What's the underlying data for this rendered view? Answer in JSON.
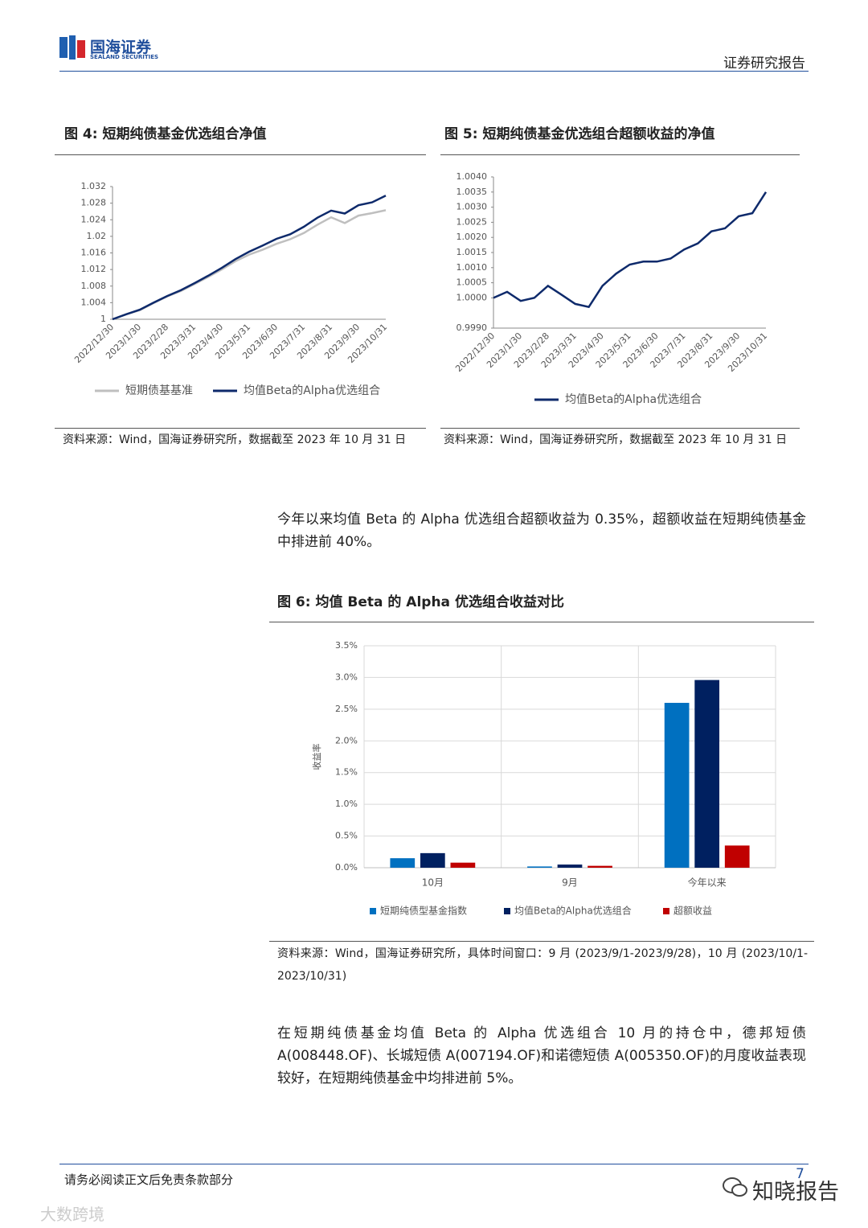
{
  "header": {
    "logo_cn": "国海证券",
    "logo_en": "SEALAND SECURITIES",
    "report_type": "证券研究报告"
  },
  "chart_data": [
    {
      "type": "line",
      "title": "图 4:  短期纯债基金优选组合净值",
      "categories": [
        "2022/12/30",
        null,
        "2023/1/30",
        null,
        "2023/2/28",
        null,
        "2023/3/31",
        null,
        "2023/4/30",
        null,
        "2023/5/31",
        null,
        "2023/6/30",
        null,
        "2023/7/31",
        null,
        "2023/8/31",
        null,
        "2023/9/30",
        null,
        "2023/10/31"
      ],
      "series": [
        {
          "name": "短期债基基准",
          "color": "#bfbfbf",
          "values": [
            1.0,
            1.0012,
            1.0022,
            1.0039,
            1.0055,
            1.0068,
            1.0085,
            1.0102,
            1.012,
            1.014,
            1.0156,
            1.0168,
            1.0182,
            1.0193,
            1.0208,
            1.0228,
            1.0246,
            1.0232,
            1.025,
            1.0256,
            1.0263
          ]
        },
        {
          "name": "均值Beta的Alpha优选组合",
          "color": "#0e2a6b",
          "values": [
            1.0,
            1.0012,
            1.0023,
            1.004,
            1.0056,
            1.007,
            1.0087,
            1.0105,
            1.0124,
            1.0145,
            1.0163,
            1.0178,
            1.0194,
            1.0205,
            1.0223,
            1.0245,
            1.0262,
            1.0255,
            1.0275,
            1.0282,
            1.0298
          ]
        }
      ],
      "ylim": [
        1,
        1.032
      ],
      "yticks": [
        1,
        1.004,
        1.008,
        1.012,
        1.016,
        1.02,
        1.024,
        1.028,
        1.032
      ],
      "grid": false
    },
    {
      "type": "line",
      "title": "图 5:  短期纯债基金优选组合超额收益的净值",
      "categories": [
        "2022/12/30",
        null,
        "2023/1/30",
        null,
        "2023/2/28",
        null,
        "2023/3/31",
        null,
        "2023/4/30",
        null,
        "2023/5/31",
        null,
        "2023/6/30",
        null,
        "2023/7/31",
        null,
        "2023/8/31",
        null,
        "2023/9/30",
        null,
        "2023/10/31"
      ],
      "series": [
        {
          "name": "均值Beta的Alpha优选组合",
          "color": "#0e2a6b",
          "values": [
            1.0,
            1.0002,
            0.9999,
            1.0,
            1.0004,
            1.0001,
            0.9998,
            0.9997,
            1.0004,
            1.0008,
            1.0011,
            1.0012,
            1.0012,
            1.0013,
            1.0016,
            1.0018,
            1.0022,
            1.0023,
            1.0027,
            1.0028,
            1.0035
          ]
        }
      ],
      "ylim": [
        0.999,
        1.004
      ],
      "yticks": [
        {
          "value": 0.999,
          "label": "0.9990"
        },
        {
          "value": 1,
          "label": "1.0000"
        },
        {
          "value": 1.0005,
          "label": "1.0005"
        },
        {
          "value": 1.001,
          "label": "1.0010"
        },
        {
          "value": 1.0015,
          "label": "1.0015"
        },
        {
          "value": 1.002,
          "label": "1.0020"
        },
        {
          "value": 1.0025,
          "label": "1.0025"
        },
        {
          "value": 1.003,
          "label": "1.0030"
        },
        {
          "value": 1.0035,
          "label": "1.0035"
        },
        {
          "value": 1.004,
          "label": "1.0040"
        }
      ],
      "grid": false
    },
    {
      "type": "bar",
      "title": "图 6:  均值 Beta 的 Alpha 优选组合收益对比",
      "y_label": "收益率",
      "categories": [
        "10月",
        "9月",
        "今年以来"
      ],
      "series": [
        {
          "name": "短期纯债型基金指数",
          "color": "#0070c0",
          "values": [
            0.15,
            0.02,
            2.6
          ]
        },
        {
          "name": "均值Beta的Alpha优选组合",
          "color": "#002060",
          "values": [
            0.23,
            0.05,
            2.96
          ]
        },
        {
          "name": "超额收益",
          "color": "#c00000",
          "values": [
            0.08,
            0.03,
            0.35
          ]
        }
      ],
      "ylim": [
        0,
        3.5
      ],
      "yticks": [
        {
          "value": 0,
          "label": "0.0%"
        },
        {
          "value": 0.5,
          "label": "0.5%"
        },
        {
          "value": 1,
          "label": "1.0%"
        },
        {
          "value": 1.5,
          "label": "1.5%"
        },
        {
          "value": 2,
          "label": "2.0%"
        },
        {
          "value": 2.5,
          "label": "2.5%"
        },
        {
          "value": 3,
          "label": "3.0%"
        },
        {
          "value": 3.5,
          "label": "3.5%"
        }
      ],
      "grid": true
    }
  ],
  "sources": [
    "资料来源：Wind，国海证券研究所，数据截至 2023 年 10 月 31 日",
    "资料来源：Wind，国海证券研究所，数据截至 2023 年 10 月 31 日",
    "资料来源：Wind，国海证券研究所，具体时间窗口：9 月 (2023/9/1-2023/9/28)，10 月 (2023/10/1-2023/10/31)"
  ],
  "paragraphs": [
    "今年以来均值 Beta 的 Alpha 优选组合超额收益为 0.35%，超额收益在短期纯债基金中排进前 40%。",
    "在短期纯债基金均值 Beta 的 Alpha 优选组合 10 月的持仓中，德邦短债 A(008448.OF)、长城短债 A(007194.OF)和诺德短债 A(005350.OF)的月度收益表现较好，在短期纯债基金中均排进前 5%。"
  ],
  "footer": {
    "disclaimer": "请务必阅读正文后免责条款部分",
    "page": "7",
    "watermark_right": "知晓报告",
    "watermark_left": "大数跨境"
  }
}
